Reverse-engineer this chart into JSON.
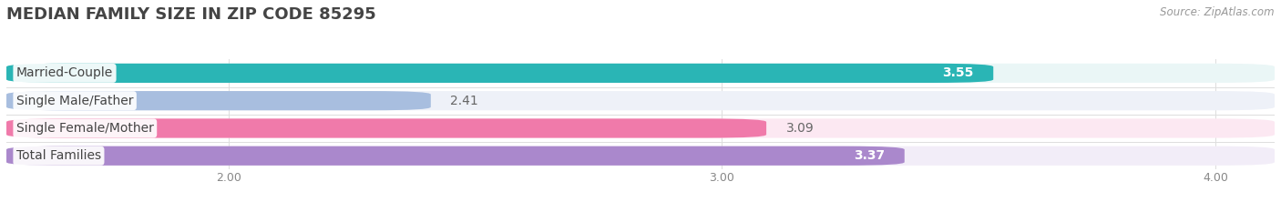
{
  "title": "MEDIAN FAMILY SIZE IN ZIP CODE 85295",
  "source": "Source: ZipAtlas.com",
  "categories": [
    "Married-Couple",
    "Single Male/Father",
    "Single Female/Mother",
    "Total Families"
  ],
  "values": [
    3.55,
    2.41,
    3.09,
    3.37
  ],
  "bar_colors": [
    "#2ab5b5",
    "#a8bedf",
    "#f07aaa",
    "#aa88cc"
  ],
  "bar_bg_colors": [
    "#eaf6f6",
    "#eef1f8",
    "#fce8f2",
    "#f2edf8"
  ],
  "value_inside": [
    true,
    false,
    false,
    true
  ],
  "xlim_left": 1.55,
  "xlim_right": 4.12,
  "xticks": [
    2.0,
    3.0,
    4.0
  ],
  "xtick_labels": [
    "2.00",
    "3.00",
    "4.00"
  ],
  "value_fontsize": 10,
  "label_fontsize": 10,
  "title_fontsize": 13,
  "background_color": "#ffffff"
}
